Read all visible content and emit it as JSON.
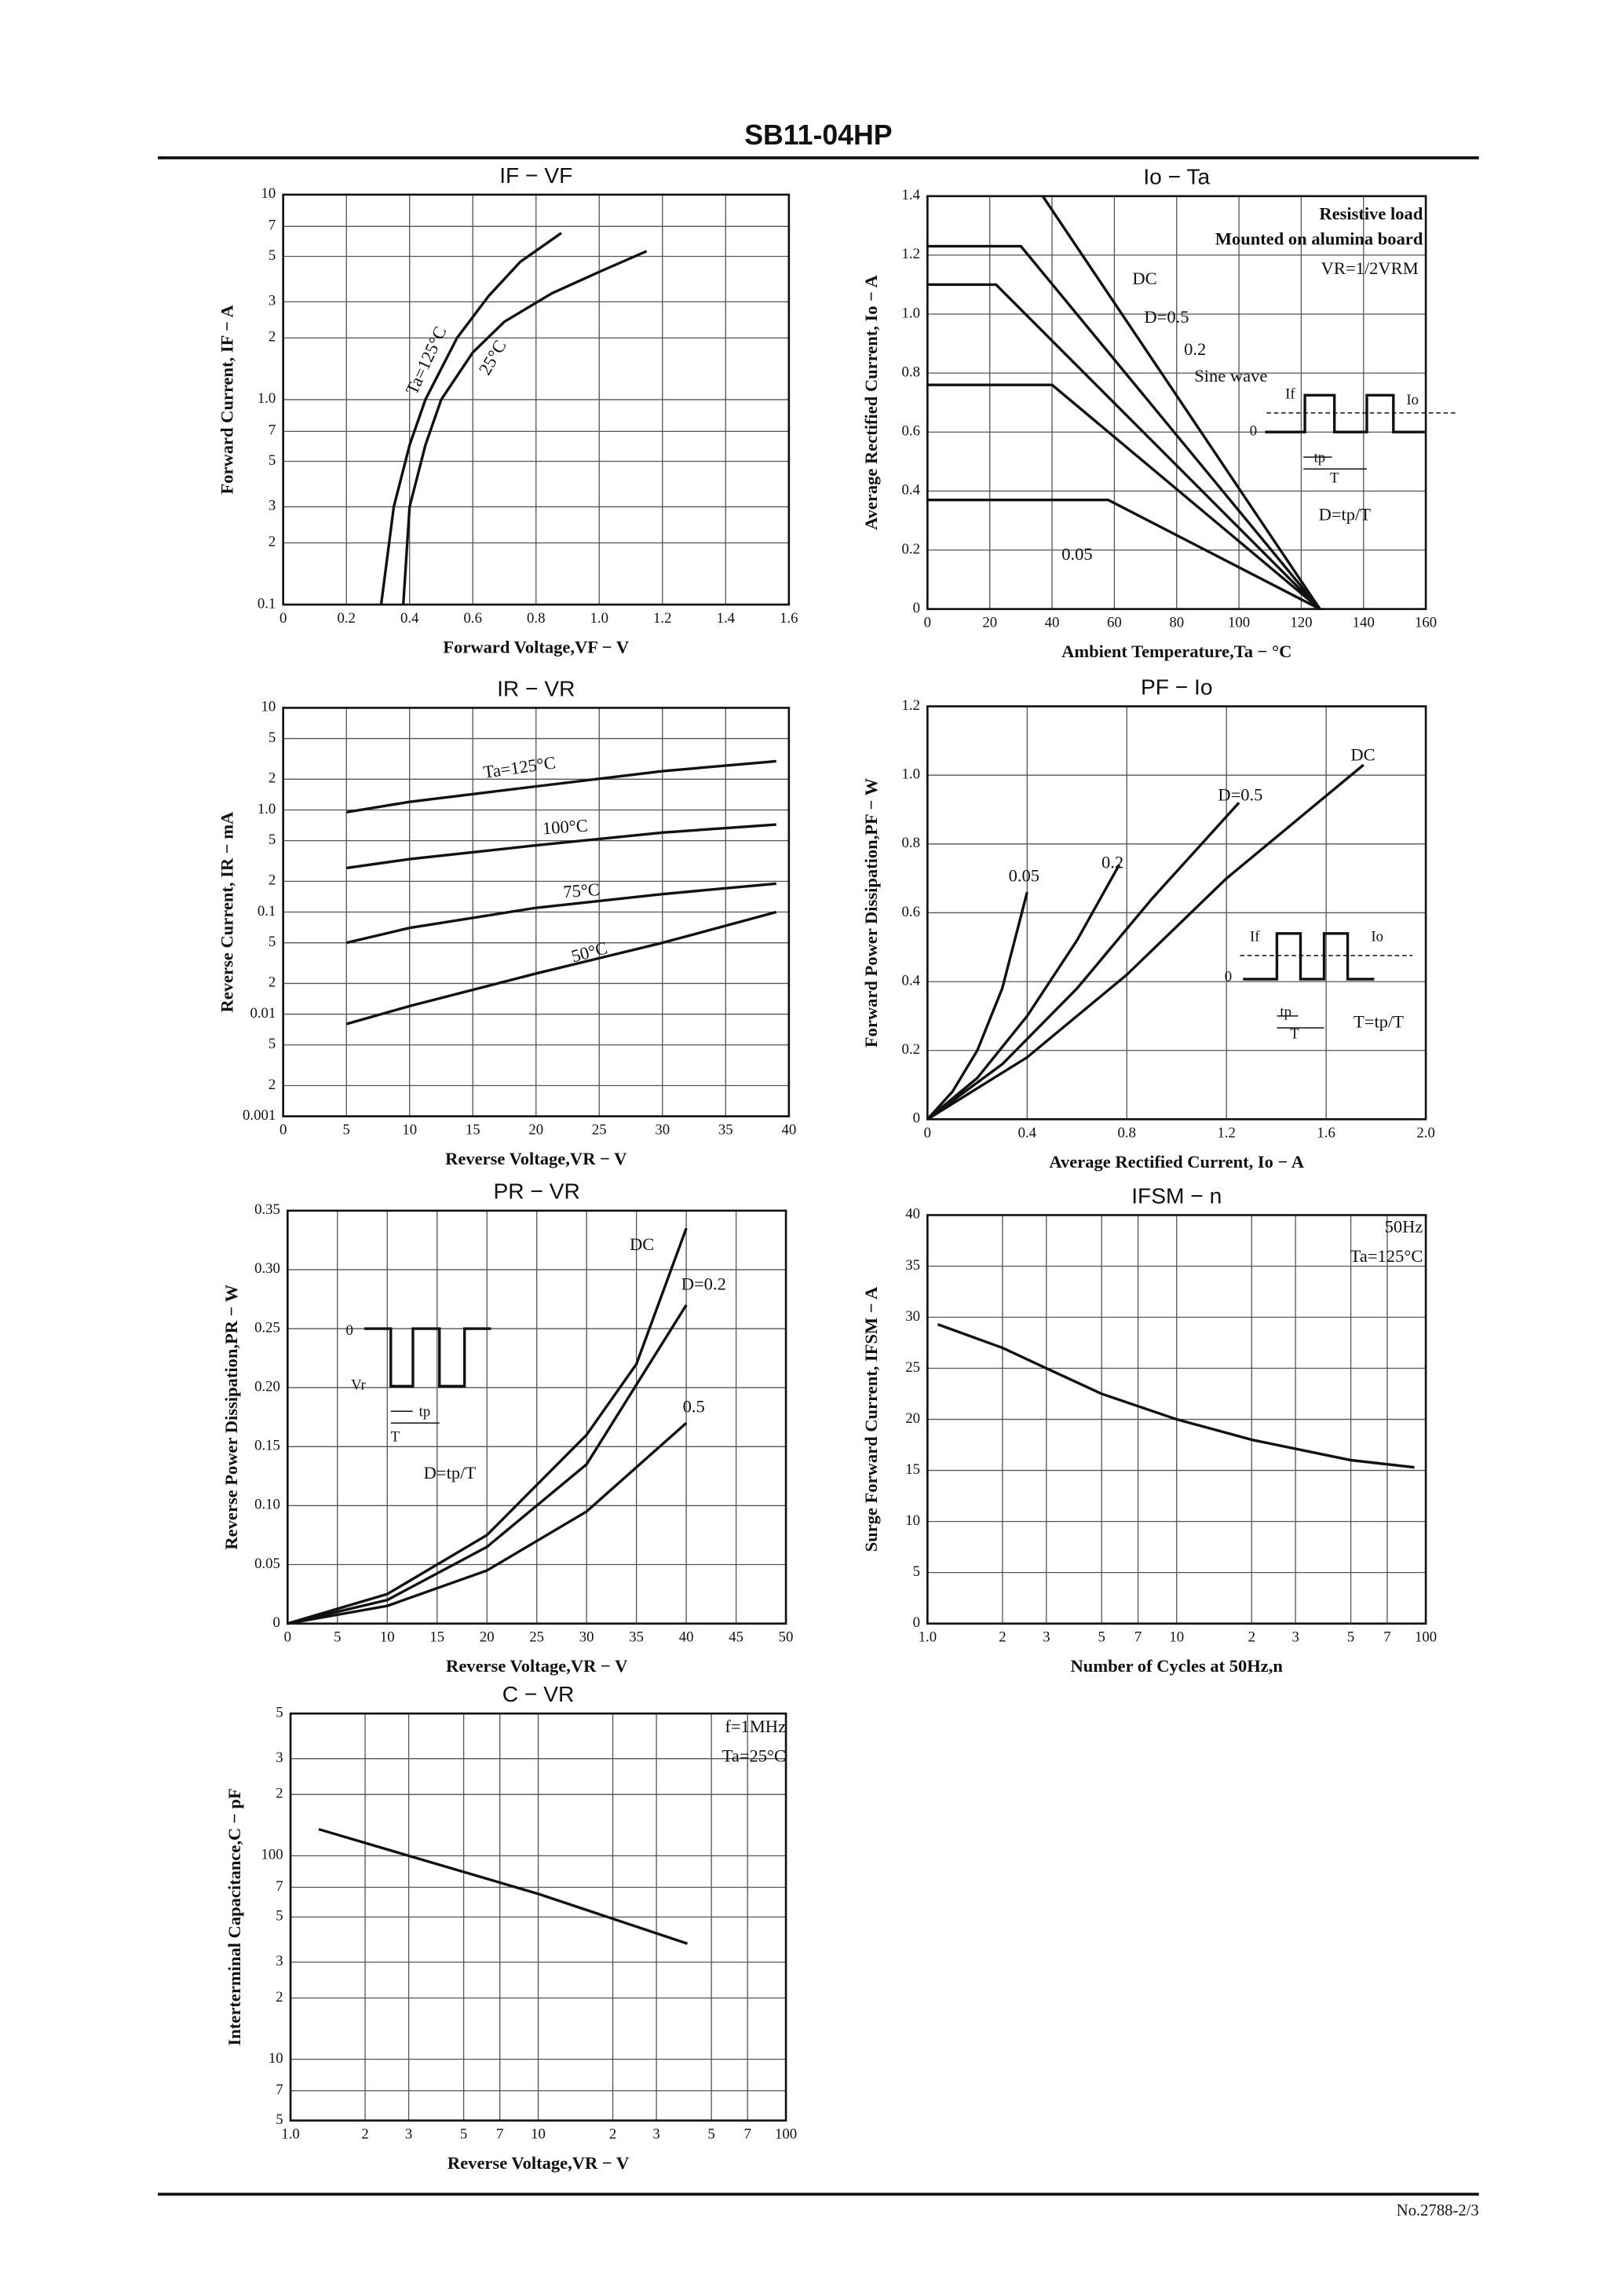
{
  "header": {
    "title": "SB11-04HP"
  },
  "footer": {
    "text": "No.2788-2/3"
  },
  "chart_data": [
    {
      "type": "line",
      "title": "IF − VF",
      "xlabel": "Forward Voltage,VF − V",
      "ylabel": "Forward Current, IF − A",
      "yscale": "log",
      "grid": true,
      "color": "#111",
      "xlim": [
        0,
        1.6
      ],
      "xticks": [
        0,
        0.2,
        0.4,
        0.6,
        0.8,
        {
          "value": 1,
          "label": "1.0"
        },
        1.2,
        1.4,
        1.6
      ],
      "ylim": [
        0.1,
        10
      ],
      "yticks": [
        0.1,
        {
          "value": 0.2,
          "label": "2"
        },
        {
          "value": 0.3,
          "label": "3"
        },
        {
          "value": 0.5,
          "label": "5"
        },
        {
          "value": 0.7,
          "label": "7"
        },
        {
          "value": 1,
          "label": "1.0"
        },
        2,
        3,
        5,
        7,
        10
      ],
      "series": [
        {
          "name": "Ta=125°C",
          "color": "#111",
          "x": [
            0.31,
            0.35,
            0.4,
            0.45,
            0.55,
            0.65,
            0.75,
            0.88
          ],
          "values": [
            0.1,
            0.3,
            0.6,
            1.0,
            2,
            3.2,
            4.7,
            6.5
          ]
        },
        {
          "name": "25°C",
          "color": "#111",
          "x": [
            0.38,
            0.4,
            0.45,
            0.5,
            0.6,
            0.7,
            0.85,
            1.0,
            1.15
          ],
          "values": [
            0.1,
            0.3,
            0.6,
            1.0,
            1.7,
            2.4,
            3.3,
            4.2,
            5.3
          ]
        }
      ]
    },
    {
      "type": "line",
      "title": "Io − Ta",
      "xlabel": "Ambient Temperature,Ta − °C",
      "ylabel": "Average Rectified Current, Io − A",
      "grid": true,
      "color": "#111",
      "xlim": [
        0,
        160
      ],
      "xticks": [
        0,
        20,
        40,
        60,
        80,
        100,
        120,
        140,
        160
      ],
      "ylim": [
        0,
        1.4
      ],
      "yticks": [
        0,
        0.2,
        0.4,
        0.6,
        0.8,
        {
          "value": 1,
          "label": "1.0"
        },
        1.2,
        1.4
      ],
      "series": [
        {
          "name": "DC",
          "color": "#111",
          "x": [
            37,
            126
          ],
          "values": [
            1.4,
            0
          ]
        },
        {
          "name": "D=0.5",
          "color": "#111",
          "x": [
            0,
            30,
            126
          ],
          "values": [
            1.23,
            1.23,
            0
          ]
        },
        {
          "name": "0.2",
          "color": "#111",
          "x": [
            0,
            40,
            126
          ],
          "values": [
            0.76,
            0.76,
            0
          ]
        },
        {
          "name": "Sine wave",
          "color": "#111",
          "x": [
            0,
            22,
            126
          ],
          "values": [
            1.1,
            1.1,
            0
          ]
        },
        {
          "name": "0.05",
          "color": "#111",
          "x": [
            0,
            58,
            126
          ],
          "values": [
            0.37,
            0.37,
            0
          ]
        }
      ],
      "annotations": [
        "Resistive load",
        "Mounted on alumina board",
        "VR=1/2VRM",
        "If",
        "Io",
        "0",
        "tp",
        "T",
        "D=tp/T"
      ]
    },
    {
      "type": "line",
      "title": "IR − VR",
      "xlabel": "Reverse Voltage,VR − V",
      "ylabel": "Reverse Current, IR − mA",
      "yscale": "log",
      "grid": true,
      "color": "#111",
      "xlim": [
        0,
        40
      ],
      "xticks": [
        0,
        5,
        10,
        15,
        20,
        25,
        30,
        35,
        40
      ],
      "ylim": [
        0.001,
        10
      ],
      "yticks": [
        0.001,
        {
          "value": 0.002,
          "label": "2"
        },
        {
          "value": 0.005,
          "label": "5"
        },
        0.01,
        {
          "value": 0.02,
          "label": "2"
        },
        {
          "value": 0.05,
          "label": "5"
        },
        0.1,
        {
          "value": 0.2,
          "label": "2"
        },
        {
          "value": 0.5,
          "label": "5"
        },
        {
          "value": 1,
          "label": "1.0"
        },
        2,
        5,
        10
      ],
      "series": [
        {
          "name": "Ta=125°C",
          "color": "#111",
          "x": [
            5,
            10,
            20,
            30,
            39
          ],
          "values": [
            0.95,
            1.2,
            1.7,
            2.4,
            3.0
          ]
        },
        {
          "name": "100°C",
          "color": "#111",
          "x": [
            5,
            10,
            20,
            30,
            39
          ],
          "values": [
            0.27,
            0.33,
            0.45,
            0.6,
            0.72
          ]
        },
        {
          "name": "75°C",
          "color": "#111",
          "x": [
            5,
            10,
            20,
            30,
            39
          ],
          "values": [
            0.05,
            0.07,
            0.11,
            0.15,
            0.19
          ]
        },
        {
          "name": "50°C",
          "color": "#111",
          "x": [
            5,
            10,
            20,
            30,
            39
          ],
          "values": [
            0.008,
            0.012,
            0.025,
            0.05,
            0.1
          ]
        }
      ]
    },
    {
      "type": "line",
      "title": "PF − Io",
      "xlabel": "Average Rectified Current, Io − A",
      "ylabel": "Forward Power Dissipation,PF − W",
      "grid": true,
      "color": "#111",
      "xlim": [
        0,
        2
      ],
      "xticks": [
        0,
        0.4,
        0.8,
        1.2,
        1.6,
        {
          "value": 2,
          "label": "2.0"
        }
      ],
      "ylim": [
        0,
        1.2
      ],
      "yticks": [
        0,
        0.2,
        0.4,
        0.6,
        0.8,
        {
          "value": 1,
          "label": "1.0"
        },
        1.2
      ],
      "series": [
        {
          "name": "0.05",
          "color": "#111",
          "x": [
            0,
            0.1,
            0.2,
            0.3,
            0.4
          ],
          "values": [
            0,
            0.08,
            0.2,
            0.38,
            0.66
          ]
        },
        {
          "name": "0.2",
          "color": "#111",
          "x": [
            0,
            0.2,
            0.4,
            0.6,
            0.77
          ],
          "values": [
            0,
            0.12,
            0.3,
            0.52,
            0.74
          ]
        },
        {
          "name": "D=0.5",
          "color": "#111",
          "x": [
            0,
            0.3,
            0.6,
            0.9,
            1.25
          ],
          "values": [
            0,
            0.16,
            0.38,
            0.64,
            0.92
          ]
        },
        {
          "name": "DC",
          "color": "#111",
          "x": [
            0,
            0.4,
            0.8,
            1.2,
            1.75
          ],
          "values": [
            0,
            0.18,
            0.42,
            0.7,
            1.03
          ]
        }
      ],
      "annotations": [
        "If",
        "Io",
        "0",
        "tp",
        "T",
        "T=tp/T"
      ]
    },
    {
      "type": "line",
      "title": "PR − VR",
      "xlabel": "Reverse Voltage,VR − V",
      "ylabel": "Reverse Power Dissipation,PR − W",
      "grid": true,
      "color": "#111",
      "xlim": [
        0,
        50
      ],
      "xticks": [
        0,
        5,
        10,
        15,
        20,
        25,
        30,
        35,
        40,
        45,
        50
      ],
      "ylim": [
        0,
        0.35
      ],
      "yticks": [
        0,
        0.05,
        {
          "value": 0.1,
          "label": "0.10"
        },
        0.15,
        {
          "value": 0.2,
          "label": "0.20"
        },
        0.25,
        {
          "value": 0.3,
          "label": "0.30"
        },
        0.35
      ],
      "series": [
        {
          "name": "DC",
          "color": "#111",
          "x": [
            0,
            10,
            20,
            30,
            35,
            40
          ],
          "values": [
            0,
            0.025,
            0.075,
            0.16,
            0.22,
            0.335
          ]
        },
        {
          "name": "D=0.2",
          "color": "#111",
          "x": [
            0,
            10,
            20,
            30,
            40
          ],
          "values": [
            0,
            0.02,
            0.065,
            0.135,
            0.27
          ]
        },
        {
          "name": "0.5",
          "color": "#111",
          "x": [
            0,
            10,
            20,
            30,
            40
          ],
          "values": [
            0,
            0.015,
            0.045,
            0.095,
            0.17
          ]
        }
      ],
      "annotations": [
        "0",
        "Vr",
        "tp",
        "T",
        "D=tp/T"
      ]
    },
    {
      "type": "line",
      "title": "IFSM − n",
      "xlabel": "Number of Cycles at 50Hz,n",
      "ylabel": "Surge Forward Current, IFSM − A",
      "xscale": "log",
      "grid": true,
      "color": "#111",
      "xlim": [
        1,
        100
      ],
      "xticks": [
        {
          "value": 1,
          "label": "1.0"
        },
        2,
        3,
        5,
        7,
        10,
        {
          "value": 20,
          "label": "2"
        },
        {
          "value": 30,
          "label": "3"
        },
        {
          "value": 50,
          "label": "5"
        },
        {
          "value": 70,
          "label": "7"
        },
        100
      ],
      "ylim": [
        0,
        40
      ],
      "yticks": [
        0,
        5,
        10,
        15,
        20,
        25,
        30,
        35,
        40
      ],
      "series": [
        {
          "color": "#111",
          "x": [
            1.1,
            2,
            3,
            5,
            10,
            20,
            50,
            90
          ],
          "values": [
            29.3,
            27,
            25,
            22.5,
            20,
            18,
            16,
            15.3
          ]
        }
      ],
      "annotations": [
        "50Hz",
        "Ta=125°C"
      ]
    },
    {
      "type": "line",
      "title": "C − VR",
      "xlabel": "Reverse Voltage,VR − V",
      "ylabel": "Interterminal Capacitance,C − pF",
      "xscale": "log",
      "yscale": "log",
      "grid": true,
      "color": "#111",
      "xlim": [
        1,
        100
      ],
      "xticks": [
        {
          "value": 1,
          "label": "1.0"
        },
        2,
        3,
        5,
        7,
        10,
        {
          "value": 20,
          "label": "2"
        },
        {
          "value": 30,
          "label": "3"
        },
        {
          "value": 50,
          "label": "5"
        },
        {
          "value": 70,
          "label": "7"
        },
        100
      ],
      "ylim": [
        5,
        500
      ],
      "yticks": [
        5,
        7,
        10,
        {
          "value": 20,
          "label": "2"
        },
        {
          "value": 30,
          "label": "3"
        },
        {
          "value": 50,
          "label": "5"
        },
        {
          "value": 70,
          "label": "7"
        },
        100,
        {
          "value": 200,
          "label": "2"
        },
        {
          "value": 300,
          "label": "3"
        },
        {
          "value": 500,
          "label": "5"
        }
      ],
      "series": [
        {
          "color": "#111",
          "x": [
            1.3,
            3,
            10,
            40
          ],
          "values": [
            135,
            100,
            65,
            37
          ]
        }
      ],
      "annotations": [
        "f=1MHz",
        "Ta=25°C"
      ]
    }
  ]
}
